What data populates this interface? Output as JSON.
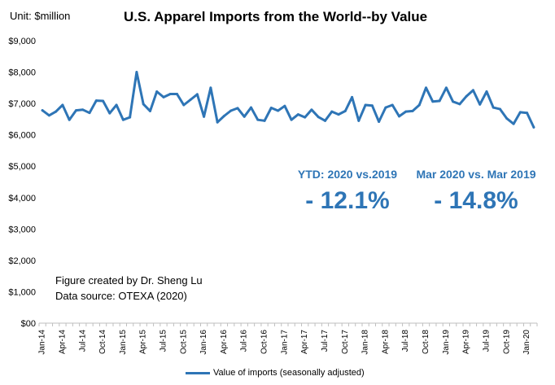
{
  "chart_data": {
    "type": "line",
    "title": "U.S. Apparel Imports from the World--by Value",
    "ylabel": "Unit: $million",
    "xlabel": "",
    "ylim": [
      0,
      9000
    ],
    "yticks": [
      0,
      1000,
      2000,
      3000,
      4000,
      5000,
      6000,
      7000,
      8000,
      9000
    ],
    "ytick_labels": [
      "$00",
      "$1,000",
      "$2,000",
      "$3,000",
      "$4,000",
      "$5,000",
      "$6,000",
      "$7,000",
      "$8,000",
      "$9,000"
    ],
    "grid": false,
    "legend_position": "bottom-center",
    "x_tick_labels": [
      "Jan-14",
      "Apr-14",
      "Jul-14",
      "Oct-14",
      "Jan-15",
      "Apr-15",
      "Jul-15",
      "Oct-15",
      "Jan-16",
      "Apr-16",
      "Jul-16",
      "Oct-16",
      "Jan-17",
      "Apr-17",
      "Jul-17",
      "Oct-17",
      "Jan-18",
      "Apr-18",
      "Jul-18",
      "Oct-18",
      "Jan-19",
      "Apr-19",
      "Jul-19",
      "Oct-19",
      "Jan-20"
    ],
    "series": [
      {
        "name": "Value of imports (seasonally adjusted)",
        "color": "#2E75B6",
        "values": [
          6780,
          6620,
          6740,
          6950,
          6480,
          6780,
          6800,
          6700,
          7090,
          7080,
          6690,
          6950,
          6480,
          6560,
          8000,
          6980,
          6760,
          7380,
          7200,
          7300,
          7300,
          6950,
          7120,
          7290,
          6580,
          7500,
          6400,
          6600,
          6770,
          6850,
          6580,
          6870,
          6480,
          6450,
          6860,
          6770,
          6920,
          6480,
          6650,
          6560,
          6800,
          6570,
          6450,
          6740,
          6650,
          6760,
          7200,
          6450,
          6950,
          6930,
          6420,
          6870,
          6950,
          6590,
          6740,
          6760,
          6950,
          7500,
          7060,
          7080,
          7500,
          7060,
          6980,
          7230,
          7420,
          6970,
          7380,
          6870,
          6820,
          6520,
          6350,
          6720,
          6700,
          6240
        ]
      }
    ],
    "annotations": [
      {
        "label": "YTD: 2020  vs.2019",
        "value": "- 12.1%"
      },
      {
        "label": "Mar 2020 vs. Mar 2019",
        "value": "- 14.8%"
      }
    ]
  },
  "credit": {
    "line1": "Figure created by Dr. Sheng Lu",
    "line2": "Data source: OTEXA (2020)"
  }
}
